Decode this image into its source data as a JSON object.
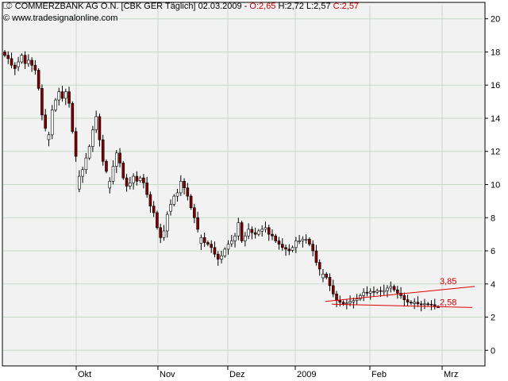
{
  "header": {
    "symbol_icon": "candlestick-icon",
    "title": "COMMERZBANK AG O.N. [CBK GER  Täglich]",
    "date": "02.03.2009",
    "open": "O:2,65",
    "high": "H:2,72",
    "low": "L:2,57",
    "close": "C:2,57",
    "source": "www.tradesignalonline.com",
    "source_icon": "copyright-icon"
  },
  "colors": {
    "background": "#ffffff",
    "plot_background": "#f2f2f2",
    "grid": "#c8d8c8",
    "up_candle": "#ffffff",
    "down_candle": "#800000",
    "trendline": "#e00000",
    "annotation": "#cc0000"
  },
  "chart_data": {
    "type": "candlestick",
    "title": "COMMERZBANK AG O.N. [CBK GER  Täglich]",
    "xlabel": "",
    "ylabel": "",
    "x_ticks": [
      "Okt",
      "Nov",
      "Dez",
      "2009",
      "Feb",
      "Mrz"
    ],
    "y_ticks": [
      0,
      2,
      4,
      6,
      8,
      10,
      12,
      14,
      16,
      18,
      20
    ],
    "ylim": [
      -0.8,
      20.8
    ],
    "y_axis_side": "right",
    "grid": true,
    "closes": [
      17.8,
      17.6,
      17.2,
      17.0,
      17.4,
      17.8,
      17.3,
      17.5,
      17.2,
      16.9,
      15.8,
      14.2,
      13.4,
      13.0,
      14.5,
      15.1,
      15.6,
      15.2,
      15.6,
      14.9,
      13.2,
      11.7,
      10.5,
      10.9,
      11.6,
      12.3,
      13.3,
      14.1,
      12.7,
      11.4,
      10.8,
      10.2,
      11.1,
      11.9,
      11.3,
      10.4,
      9.9,
      10.1,
      10.5,
      10.2,
      10.4,
      10.1,
      9.4,
      8.7,
      8.3,
      7.4,
      6.8,
      7.2,
      8.2,
      8.8,
      9.3,
      9.5,
      10.2,
      9.8,
      9.3,
      8.6,
      8.0,
      7.3,
      6.8,
      6.5,
      6.4,
      6.2,
      5.8,
      5.5,
      5.7,
      6.1,
      6.4,
      6.6,
      6.9,
      7.7,
      6.6,
      6.9,
      7.3,
      7.1,
      7.0,
      7.2,
      7.3,
      7.4,
      7.0,
      6.9,
      6.6,
      6.4,
      6.2,
      6.1,
      6.0,
      6.2,
      6.6,
      6.6,
      6.7,
      6.7,
      6.4,
      6.0,
      5.3,
      4.9,
      4.6,
      4.4,
      3.9,
      3.4,
      3.0,
      2.9,
      2.8,
      2.85,
      2.95,
      3.0,
      3.1,
      3.3,
      3.5,
      3.45,
      3.55,
      3.5,
      3.6,
      3.55,
      3.6,
      3.75,
      3.85,
      3.65,
      3.45,
      3.3,
      3.05,
      2.9,
      2.85,
      2.9,
      2.8,
      2.75,
      2.8,
      2.78,
      2.75,
      2.65,
      2.57
    ],
    "last_ohlc": {
      "date": "02.03.2009",
      "open": 2.65,
      "high": 2.72,
      "low": 2.57,
      "close": 2.57
    },
    "trendlines": [
      {
        "from": 2.95,
        "to": 3.85,
        "label": "3,85"
      },
      {
        "from": 2.78,
        "to": 2.58,
        "label": "2,58"
      }
    ]
  }
}
